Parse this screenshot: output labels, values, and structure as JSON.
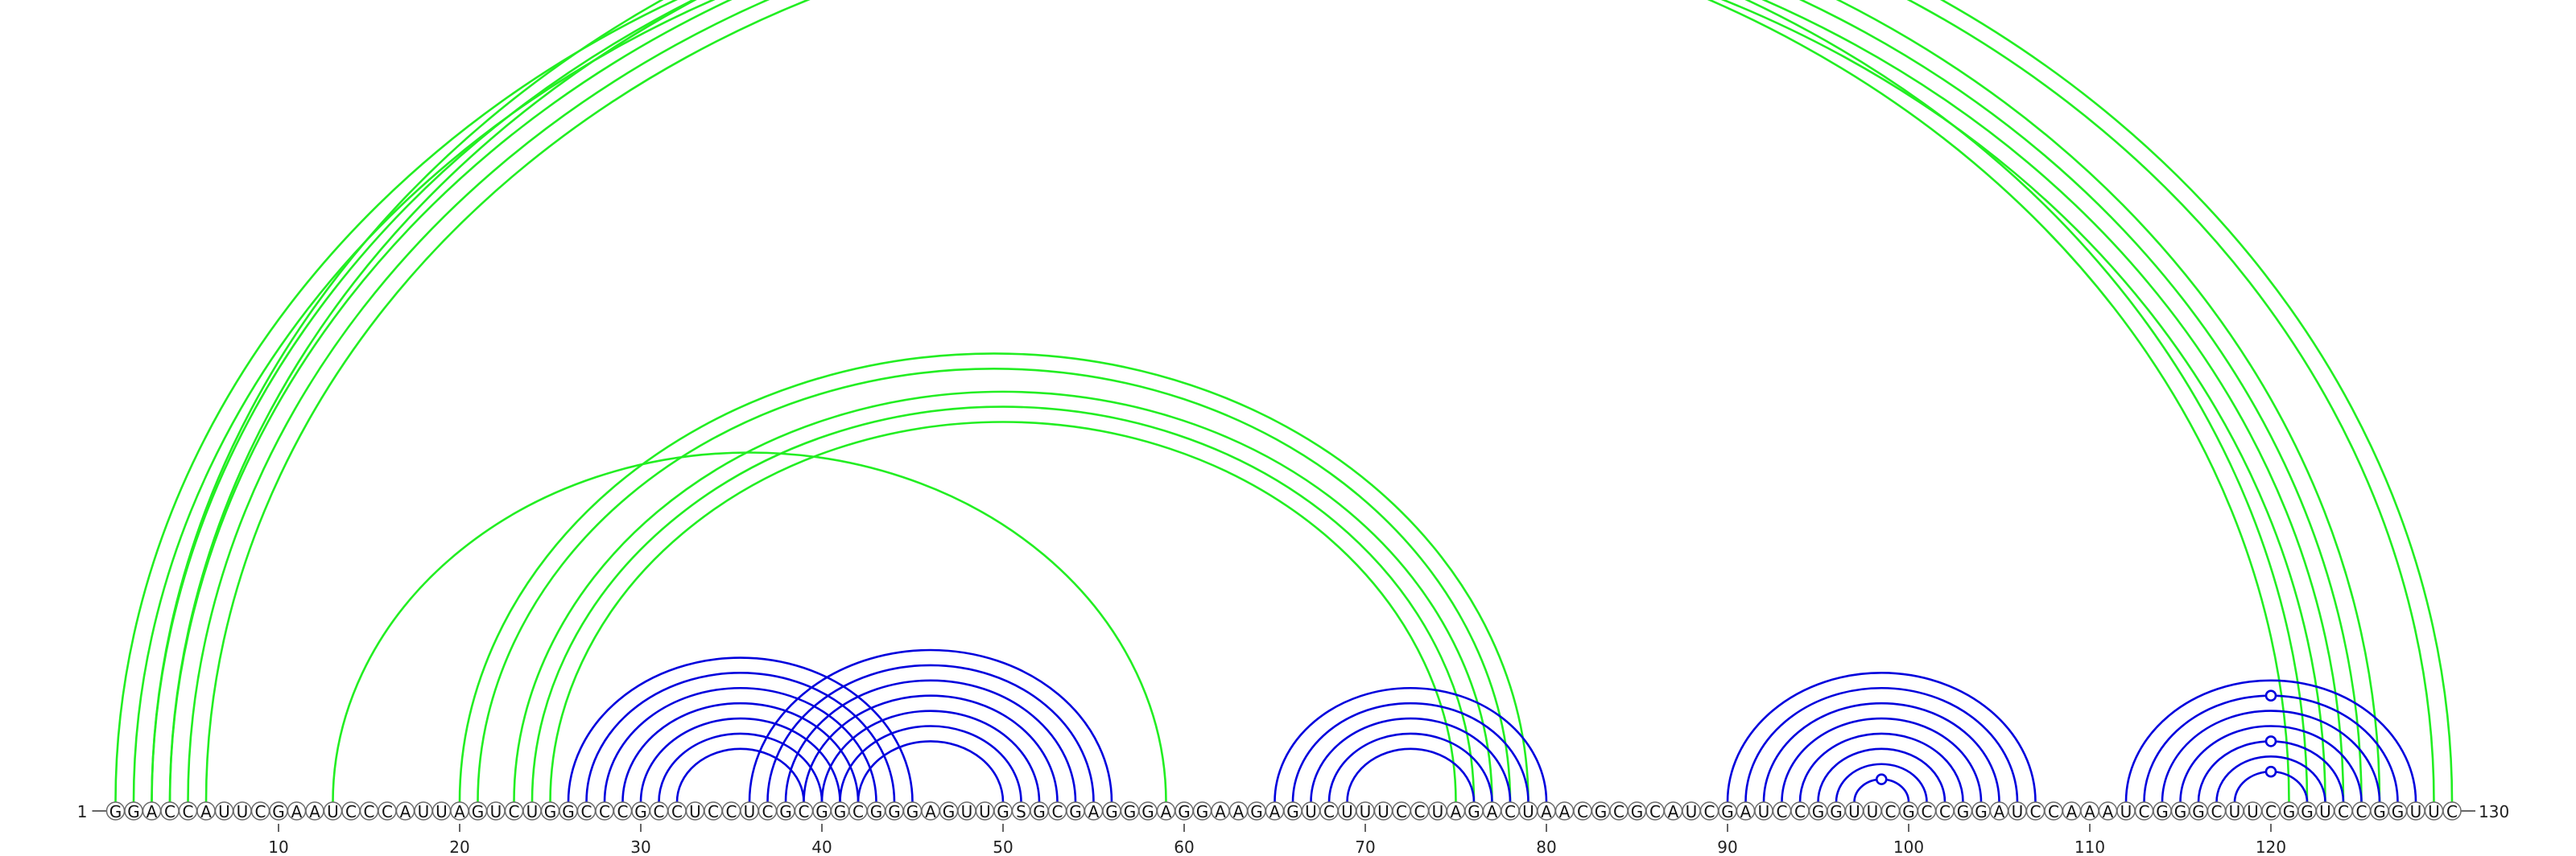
{
  "sequence": "GGACCAUUCGAAUCCCAUUAGUCUGGCCCGCCUCCUCGCGGCGGGAGUUGSGCGAGGGAGGAAGAGUCUUUCCUAGACUAACGCGCAUCGAUCCGGUUCGCCGGAUCCAAAUCGGGCUUCGGUCCGGUUC",
  "start_label": "1",
  "end_label": "130",
  "ticks": [
    10,
    20,
    30,
    40,
    50,
    60,
    70,
    80,
    90,
    100,
    110,
    120
  ],
  "colors": {
    "outer_pairs": "#22ee22",
    "inner_pairs": "#0000dd",
    "circle_stroke": "#6a6a6a",
    "text": "#111111"
  },
  "pairs": {
    "green": [
      [
        1,
        122
      ],
      [
        2,
        121
      ],
      [
        3,
        126
      ],
      [
        4,
        125
      ],
      [
        5,
        124
      ],
      [
        6,
        123
      ],
      [
        3,
        130
      ],
      [
        4,
        129
      ],
      [
        20,
        79
      ],
      [
        21,
        78
      ],
      [
        23,
        77
      ],
      [
        24,
        76
      ],
      [
        25,
        75
      ],
      [
        13,
        59
      ]
    ],
    "blue": [
      [
        36,
        56
      ],
      [
        37,
        55
      ],
      [
        38,
        54
      ],
      [
        39,
        53
      ],
      [
        40,
        52
      ],
      [
        41,
        51
      ],
      [
        42,
        50
      ],
      [
        26,
        45
      ],
      [
        27,
        44
      ],
      [
        28,
        43
      ],
      [
        29,
        42
      ],
      [
        30,
        41
      ],
      [
        31,
        40
      ],
      [
        32,
        39
      ],
      [
        65,
        80
      ],
      [
        66,
        79
      ],
      [
        67,
        78
      ],
      [
        68,
        77
      ],
      [
        69,
        76
      ],
      [
        90,
        107
      ],
      [
        91,
        106
      ],
      [
        92,
        105
      ],
      [
        93,
        104
      ],
      [
        94,
        103
      ],
      [
        95,
        102
      ],
      [
        96,
        101
      ],
      [
        97,
        100
      ],
      [
        112,
        128
      ],
      [
        113,
        127
      ],
      [
        114,
        126
      ],
      [
        115,
        125
      ],
      [
        116,
        124
      ],
      [
        117,
        123
      ],
      [
        118,
        122
      ]
    ]
  },
  "markers": [
    {
      "color": "outer_pairs",
      "i": 3,
      "j": 130
    },
    {
      "color": "inner_pairs",
      "i": 97,
      "j": 100
    },
    {
      "color": "inner_pairs",
      "i": 118,
      "j": 122
    },
    {
      "color": "inner_pairs",
      "i": 116,
      "j": 124
    },
    {
      "color": "inner_pairs",
      "i": 113,
      "j": 127
    }
  ]
}
